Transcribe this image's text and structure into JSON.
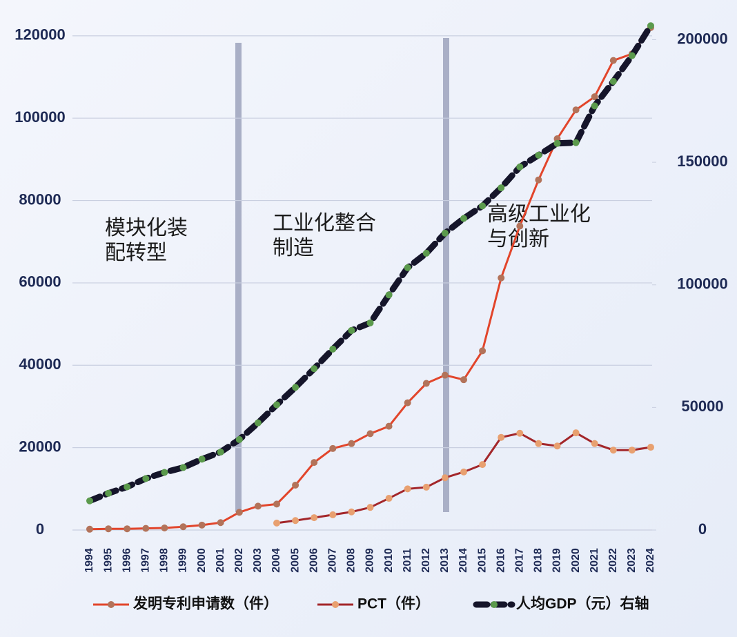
{
  "chart_data": {
    "type": "line",
    "categories": [
      "1994",
      "1995",
      "1996",
      "1997",
      "1998",
      "1999",
      "2000",
      "2001",
      "2002",
      "2003",
      "2004",
      "2005",
      "2006",
      "2007",
      "2008",
      "2009",
      "2010",
      "2011",
      "2012",
      "2013",
      "2014",
      "2015",
      "2016",
      "2017",
      "2018",
      "2019",
      "2020",
      "2021",
      "2022",
      "2023",
      "2024"
    ],
    "series": [
      {
        "name": "发明专利申请数（件）",
        "color": "#e2452b",
        "marker_color": "#b3735a",
        "values": [
          200,
          300,
          300,
          400,
          500,
          800,
          1200,
          1800,
          4300,
          5800,
          6300,
          10900,
          16400,
          19800,
          21000,
          23400,
          25200,
          30900,
          35600,
          37600,
          36500,
          43500,
          61200,
          73800,
          85000,
          95000,
          102000,
          105200,
          114000,
          115600,
          122000
        ]
      },
      {
        "name": "PCT（件）",
        "color": "#a3262a",
        "marker_color": "#e8a070",
        "values": [
          null,
          null,
          null,
          null,
          null,
          null,
          null,
          null,
          null,
          null,
          1700,
          2300,
          3000,
          3700,
          4400,
          5500,
          7700,
          10000,
          10400,
          12700,
          14100,
          15900,
          22500,
          23500,
          21000,
          20400,
          23600,
          21000,
          19400,
          19400,
          20100
        ]
      },
      {
        "name": "人均GDP（元）右轴",
        "color": "#15152a",
        "marker_color": "#5b9a4c",
        "axis": "y2",
        "dashed": true,
        "values": [
          11900,
          15000,
          17600,
          21000,
          23500,
          25500,
          28900,
          31800,
          36900,
          43700,
          51100,
          58200,
          65800,
          73800,
          81400,
          84500,
          95900,
          107000,
          112900,
          121100,
          127100,
          132200,
          139600,
          148100,
          152900,
          157700,
          158000,
          173000,
          183000,
          193500,
          205700
        ]
      }
    ],
    "annotations": [
      [
        "模块化装",
        "配转型"
      ],
      [
        "工业化整合",
        "制造"
      ],
      [
        "高级工业化",
        "与创新"
      ]
    ],
    "ylim": [
      0,
      125000
    ],
    "yticks": [
      0,
      20000,
      40000,
      60000,
      80000,
      100000,
      120000
    ],
    "y2lim": [
      0,
      210000
    ],
    "y2ticks": [
      0,
      50000,
      100000,
      150000,
      200000
    ],
    "grid": true,
    "legend": "bottom"
  }
}
